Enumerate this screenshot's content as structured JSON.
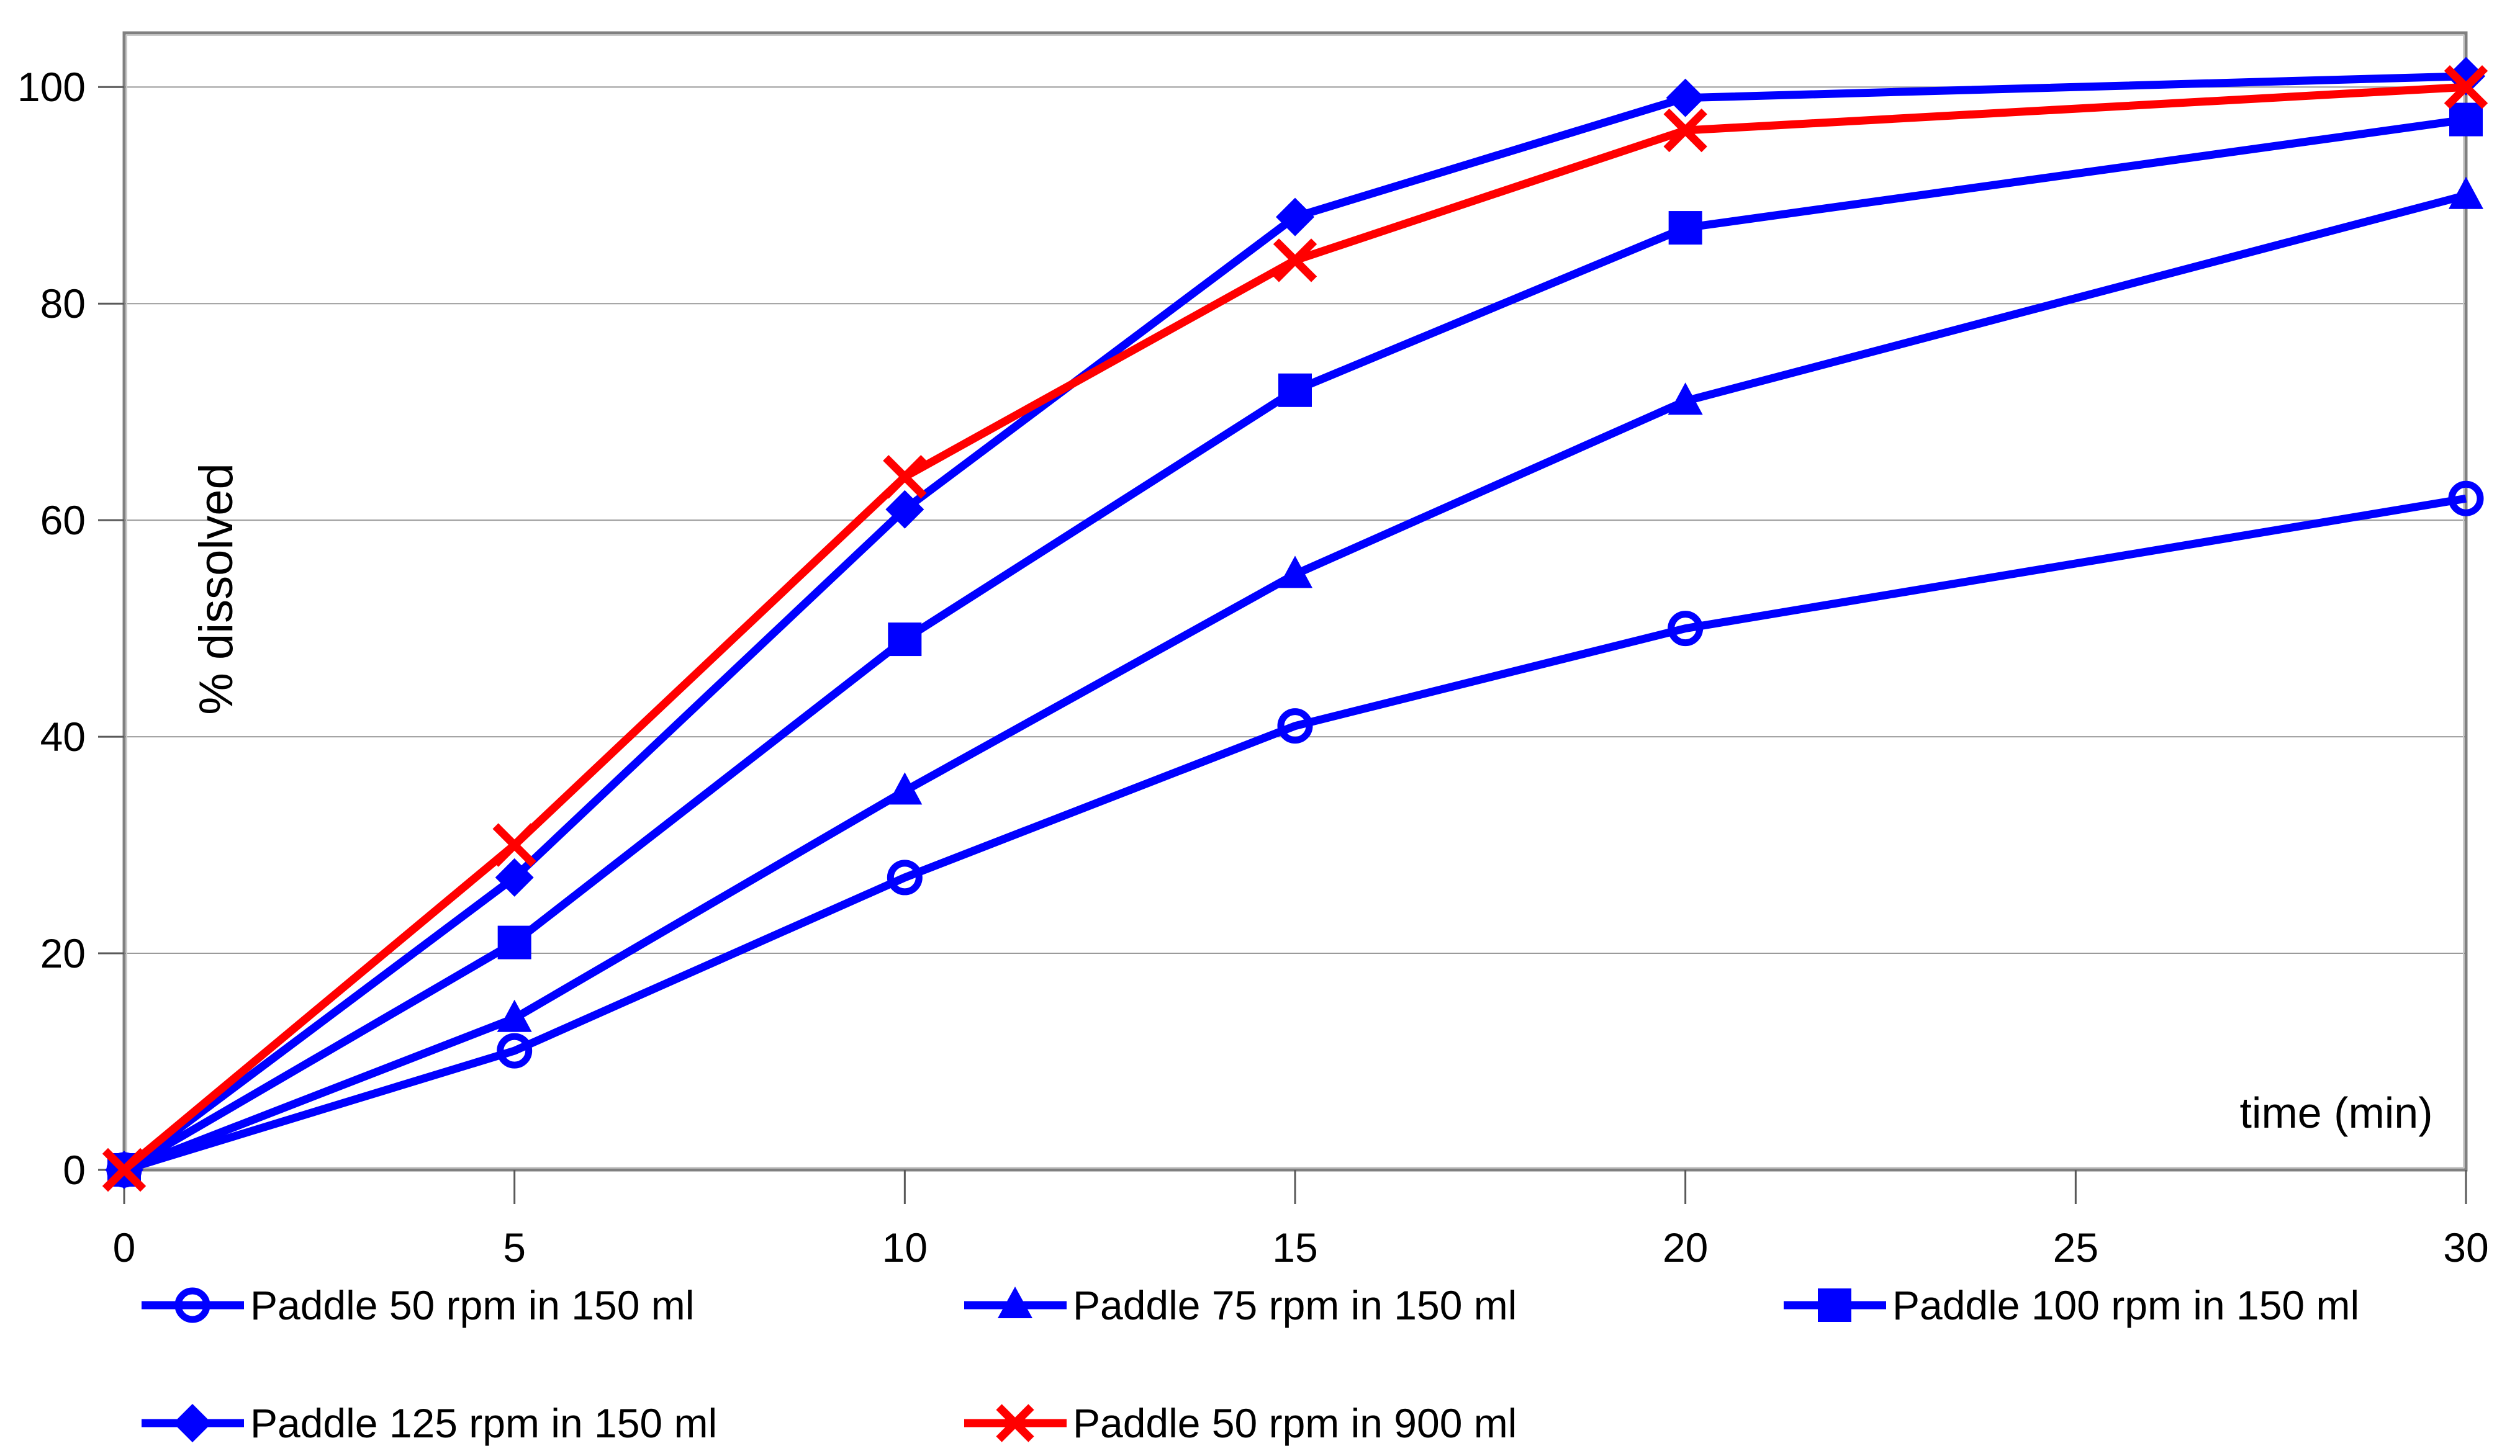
{
  "chart_data": {
    "type": "line",
    "title": "",
    "xlabel": "time (min)",
    "ylabel": "% dissolved",
    "x": [
      0,
      5,
      10,
      15,
      20,
      30
    ],
    "x_ticks": [
      0,
      5,
      10,
      15,
      20,
      25,
      30
    ],
    "y_ticks": [
      0,
      20,
      40,
      60,
      80,
      100
    ],
    "xlim": [
      0,
      30
    ],
    "ylim": [
      0,
      105
    ],
    "grid": "horizontal-only",
    "legend_position": "bottom",
    "series": [
      {
        "name": "Paddle 50 rpm in 150 ml",
        "marker": "circle-open",
        "color": "#0000FF",
        "values": [
          0,
          11,
          27,
          41,
          50,
          62
        ]
      },
      {
        "name": "Paddle 75 rpm in 150 ml",
        "marker": "triangle",
        "color": "#0000FF",
        "values": [
          0,
          14,
          35,
          55,
          71,
          90
        ]
      },
      {
        "name": "Paddle 100 rpm in 150 ml",
        "marker": "square",
        "color": "#0000FF",
        "values": [
          0,
          21,
          49,
          72,
          87,
          97
        ]
      },
      {
        "name": "Paddle 125 rpm in 150 ml",
        "marker": "diamond",
        "color": "#0000FF",
        "values": [
          0,
          27,
          61,
          88,
          99,
          101
        ]
      },
      {
        "name": "Paddle 50 rpm in 900 ml",
        "marker": "x",
        "color": "#FF0000",
        "values": [
          0,
          30,
          64,
          84,
          96,
          100
        ]
      }
    ],
    "colors": {
      "frame": "#808080",
      "frame_highlight": "#C9C9C9",
      "grid": "#9B9B9B",
      "tick": "#595959",
      "text": "#000000",
      "background": "#FFFFFF"
    }
  }
}
